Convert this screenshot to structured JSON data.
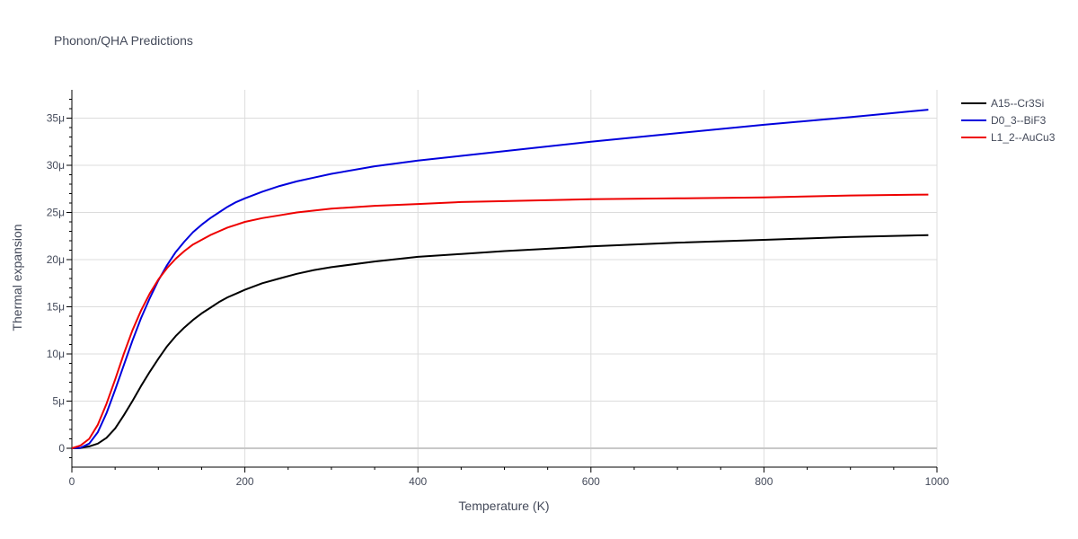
{
  "chart_data": {
    "type": "line",
    "title": "Phonon/QHA Predictions",
    "xlabel": "Temperature (K)",
    "ylabel": "Thermal expansion",
    "xlim": [
      0,
      1000
    ],
    "ylim": [
      -2e-06,
      3.8e-05
    ],
    "x_ticks": [
      0,
      200,
      400,
      600,
      800,
      1000
    ],
    "y_ticks": [
      0,
      5e-06,
      1e-05,
      1.5e-05,
      2e-05,
      2.5e-05,
      3e-05,
      3.5e-05
    ],
    "x_tick_labels": [
      "0",
      "200",
      "400",
      "600",
      "800",
      "1000"
    ],
    "y_tick_labels": [
      "0",
      "5μ",
      "10μ",
      "15μ",
      "20μ",
      "25μ",
      "30μ",
      "35μ"
    ],
    "grid": true,
    "legend_position": "top-right",
    "series": [
      {
        "name": "A15--Cr3Si",
        "color": "#000000",
        "x": [
          0,
          10,
          20,
          30,
          40,
          50,
          60,
          70,
          80,
          90,
          100,
          110,
          120,
          130,
          140,
          150,
          160,
          170,
          180,
          190,
          200,
          220,
          240,
          260,
          280,
          300,
          350,
          400,
          450,
          500,
          600,
          700,
          800,
          900,
          990
        ],
        "y": [
          0,
          3e-08,
          2e-07,
          5e-07,
          1.1e-06,
          2.1e-06,
          3.5e-06,
          5e-06,
          6.6e-06,
          8.1e-06,
          9.5e-06,
          1.08e-05,
          1.19e-05,
          1.28e-05,
          1.36e-05,
          1.43e-05,
          1.49e-05,
          1.55e-05,
          1.6e-05,
          1.64e-05,
          1.68e-05,
          1.75e-05,
          1.8e-05,
          1.85e-05,
          1.89e-05,
          1.92e-05,
          1.98e-05,
          2.03e-05,
          2.06e-05,
          2.09e-05,
          2.14e-05,
          2.18e-05,
          2.21e-05,
          2.24e-05,
          2.26e-05
        ]
      },
      {
        "name": "D0_3--BiF3",
        "color": "#0000dd",
        "x": [
          0,
          10,
          20,
          30,
          40,
          50,
          60,
          70,
          80,
          90,
          100,
          110,
          120,
          130,
          140,
          150,
          160,
          170,
          180,
          190,
          200,
          220,
          240,
          260,
          280,
          300,
          350,
          400,
          450,
          500,
          600,
          700,
          800,
          900,
          990
        ],
        "y": [
          0,
          5e-08,
          5e-07,
          1.7e-06,
          3.7e-06,
          6.2e-06,
          8.8e-06,
          1.14e-05,
          1.38e-05,
          1.59e-05,
          1.78e-05,
          1.94e-05,
          2.08e-05,
          2.19e-05,
          2.29e-05,
          2.37e-05,
          2.44e-05,
          2.5e-05,
          2.56e-05,
          2.61e-05,
          2.65e-05,
          2.72e-05,
          2.78e-05,
          2.83e-05,
          2.87e-05,
          2.91e-05,
          2.99e-05,
          3.05e-05,
          3.1e-05,
          3.15e-05,
          3.25e-05,
          3.34e-05,
          3.43e-05,
          3.51e-05,
          3.59e-05
        ]
      },
      {
        "name": "L1_2--AuCu3",
        "color": "#ee0000",
        "x": [
          0,
          10,
          20,
          30,
          40,
          50,
          60,
          70,
          80,
          90,
          100,
          110,
          120,
          130,
          140,
          150,
          160,
          170,
          180,
          190,
          200,
          220,
          240,
          260,
          280,
          300,
          350,
          400,
          450,
          500,
          600,
          700,
          800,
          900,
          990
        ],
        "y": [
          0,
          3e-07,
          1e-06,
          2.5e-06,
          4.7e-06,
          7.3e-06,
          1e-05,
          1.25e-05,
          1.46e-05,
          1.64e-05,
          1.79e-05,
          1.91e-05,
          2.01e-05,
          2.09e-05,
          2.16e-05,
          2.21e-05,
          2.26e-05,
          2.3e-05,
          2.34e-05,
          2.37e-05,
          2.4e-05,
          2.44e-05,
          2.47e-05,
          2.5e-05,
          2.52e-05,
          2.54e-05,
          2.57e-05,
          2.59e-05,
          2.61e-05,
          2.62e-05,
          2.64e-05,
          2.65e-05,
          2.66e-05,
          2.68e-05,
          2.69e-05
        ]
      }
    ]
  }
}
